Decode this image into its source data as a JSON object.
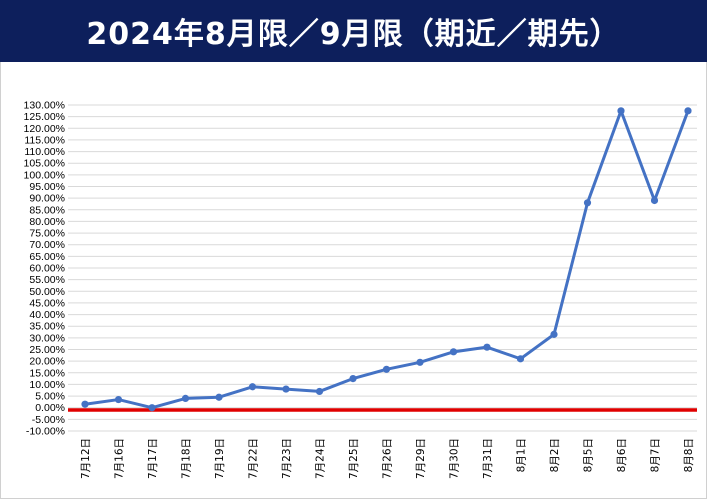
{
  "header": {
    "title": "2024年8月限／9月限（期近／期先）",
    "background_color": "#0d1f5c",
    "text_color": "#ffffff"
  },
  "chart_data": {
    "type": "line",
    "title": "",
    "xlabel": "",
    "ylabel": "",
    "categories": [
      "7月12日",
      "7月16日",
      "7月17日",
      "7月18日",
      "7月19日",
      "7月22日",
      "7月23日",
      "7月24日",
      "7月25日",
      "7月26日",
      "7月29日",
      "7月30日",
      "7月31日",
      "8月1日",
      "8月2日",
      "8月5日",
      "8月6日",
      "8月7日",
      "8月8日"
    ],
    "series": [
      {
        "color": "#4472c4",
        "values": [
          1.5,
          3.5,
          0.0,
          4.0,
          4.5,
          9.0,
          8.0,
          7.0,
          12.5,
          16.5,
          19.5,
          24.0,
          26.0,
          21.0,
          31.5,
          88.0,
          127.5,
          89.0,
          127.5
        ]
      }
    ],
    "reference_line": {
      "value": -1.0,
      "color": "#e00000"
    },
    "ylim": [
      -10,
      130
    ],
    "ytick_step": 5,
    "ytick_format": "percent-2dp",
    "grid": true,
    "legend": "none"
  }
}
